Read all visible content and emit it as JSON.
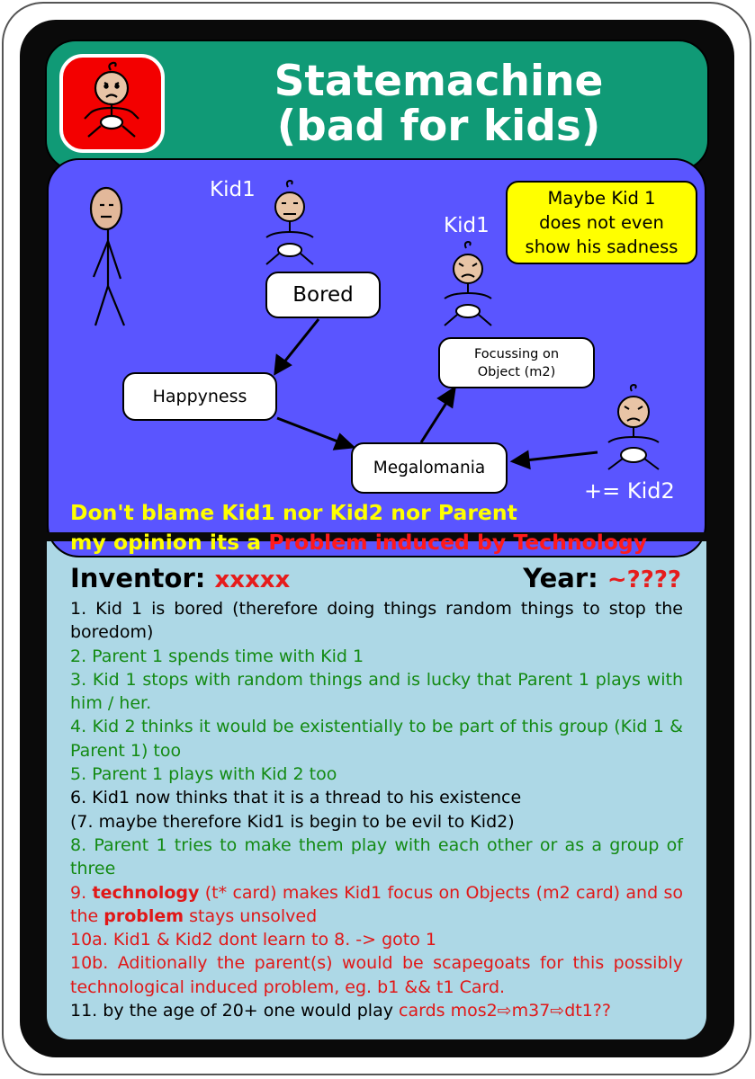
{
  "header": {
    "title_line1": "Statemachine",
    "title_line2": "(bad for kids)",
    "logo_icon": "sad-baby-icon"
  },
  "diagram": {
    "kid_label_1": "Kid1",
    "kid_label_2": "Kid1",
    "kid2_label": "+= Kid2",
    "nodes": {
      "bored": "Bored",
      "happyness": "Happyness",
      "focus_line1": "Focussing on",
      "focus_line2": "Object (m2)",
      "megalomania": "Megalomania"
    },
    "note_lines": [
      "Maybe Kid 1",
      "does not even",
      "show his sadness"
    ],
    "blame_line1": "Don't blame Kid1 nor Kid2 nor Parent",
    "blame_line2_prefix": "my opinion its a",
    "blame_line2_highlight": "Problem induced by Technology"
  },
  "info": {
    "inventor_label": "Inventor:",
    "inventor_value": "xxxxx",
    "year_label": "Year:",
    "year_value": "~????"
  },
  "steps": {
    "s1": "1. Kid 1 is bored (therefore doing things random things to stop the boredom)",
    "s2": "2. Parent 1 spends time with Kid 1",
    "s3": "3. Kid 1 stops with random things and is lucky that Parent 1 plays with him / her.",
    "s4": "4. Kid 2 thinks it would be existentially to be part of this group (Kid 1 & Parent 1) too",
    "s5": "5. Parent 1 plays with Kid 2 too",
    "s6": "6. Kid1 now thinks that it is a thread to his existence",
    "s7": "(7. maybe therefore Kid1 is begin to be evil to Kid2)",
    "s8": "8. Parent 1 tries to make them play with each other or as a group of three",
    "s9_a": "9.",
    "s9_b": "technology",
    "s9_c": "(t* card) makes Kid1 focus on Objects (m2 card) and so the",
    "s9_d": "problem",
    "s9_e": "stays unsolved",
    "s10a": "10a. Kid1 & Kid2 dont learn to 8.  -> goto 1",
    "s10b": "10b. Aditionally the parent(s) would be scapegoats for this possibly technological induced problem, eg. b1 && t1 Card.",
    "s11_a": "11. by the age of 20+ one would play",
    "s11_b": "cards mos2⇨m37⇨dt1??"
  },
  "colors": {
    "header_green": "#109a76",
    "panel_blue": "#5a55ff",
    "lower_lightblue": "#add8e6",
    "logo_red": "#f30000",
    "note_yellow": "#ffff00"
  }
}
